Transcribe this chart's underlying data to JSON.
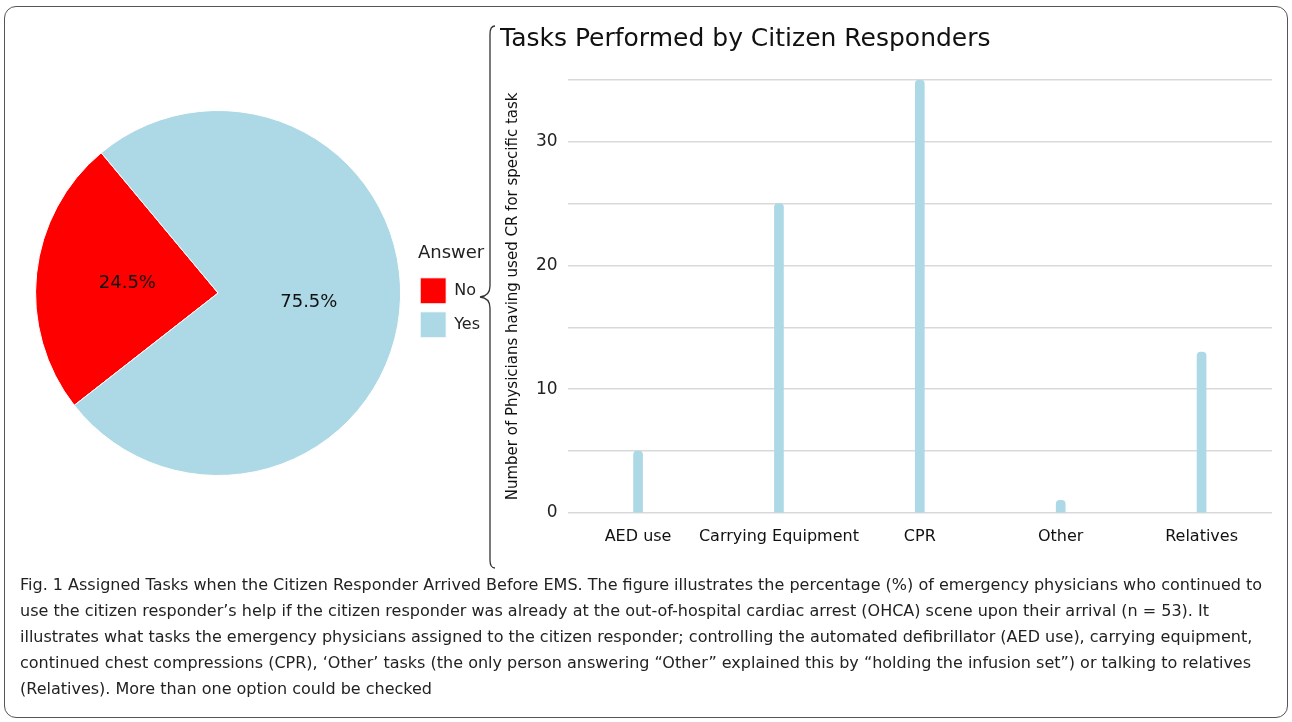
{
  "chart_data": [
    {
      "type": "pie",
      "categories": [
        "No",
        "Yes"
      ],
      "values": [
        24.5,
        75.5
      ],
      "colors": [
        "#ff0000",
        "#add8e6"
      ],
      "value_labels": [
        "24.5%",
        "75.5%"
      ],
      "legend": "right",
      "legend_title": "Answer"
    },
    {
      "type": "bar",
      "title": "Tasks Performed by Citizen Responders",
      "ylabel": "Number of Physicians having used CR for specific task",
      "categories": [
        "AED use",
        "Carrying Equipment",
        "CPR",
        "Other",
        "Relatives"
      ],
      "values": [
        5,
        25,
        35,
        1,
        13
      ],
      "color": "#add8e6",
      "ylim": [
        0,
        35
      ],
      "yticks": [
        0,
        {
          "value": 5,
          "label": null
        },
        10,
        {
          "value": 15,
          "label": null
        },
        20,
        {
          "value": 25,
          "label": null
        },
        30,
        {
          "value": 35,
          "label": null
        }
      ],
      "grid": "y",
      "annotations": [
        "Fig. 1 Assigned Tasks when the Citizen Responder Arrived Before EMS. The figure illustrates the percentage (%) of emergency physicians who continued to use the citizen responder’s help if the citizen responder was already at the out-of-hospital cardiac arrest (OHCA) scene upon their arrival (n = 53). It illustrates what tasks the emergency physicians assigned to the citizen responder; controlling the automated defibrillator (AED use), carrying equipment, continued chest compressions (CPR), ‘Other’ tasks (the only person answering “Other” explained this by “holding the infusion set”) or talking to relatives (Relatives). More than one option could be checked"
      ]
    }
  ]
}
